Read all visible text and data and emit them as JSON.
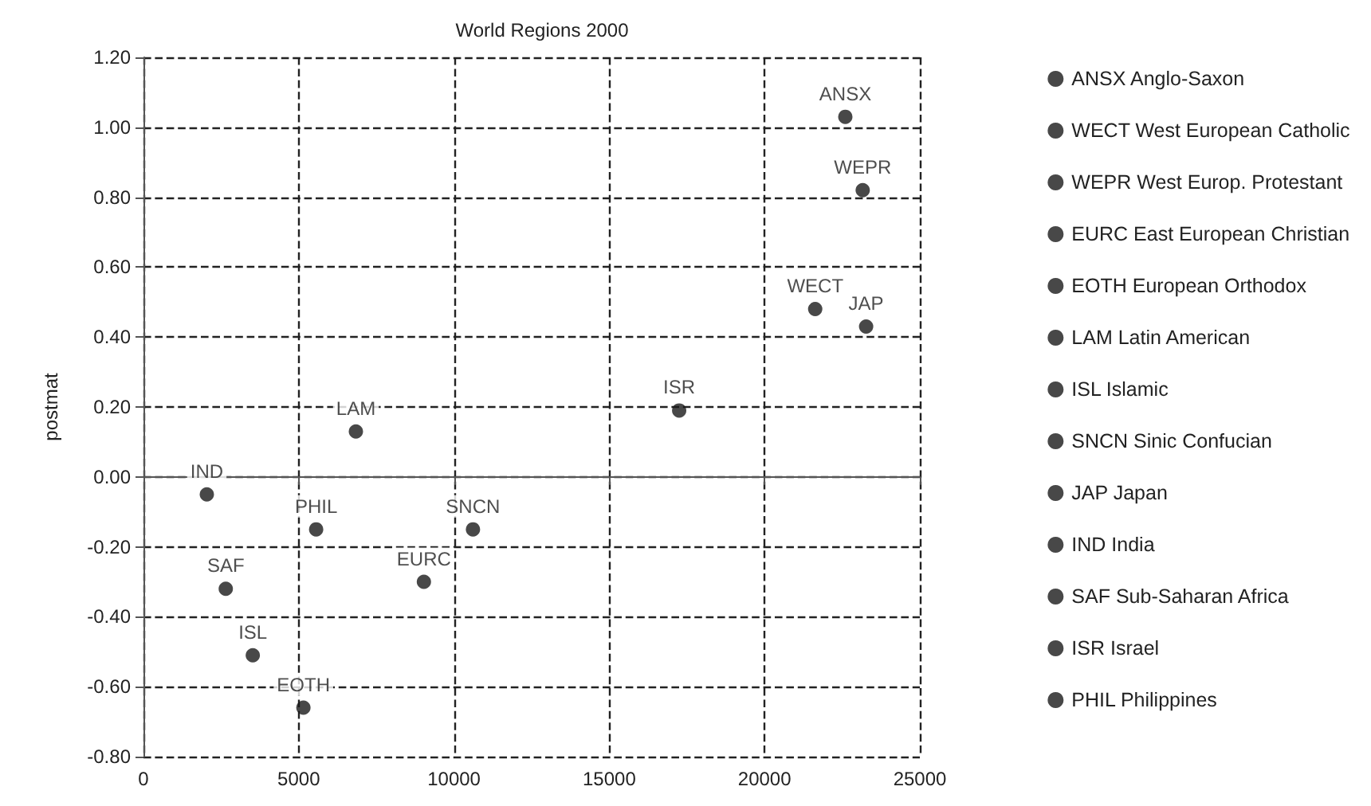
{
  "chart_data": {
    "type": "scatter",
    "title": "World Regions 2000",
    "ylabel": "postmat",
    "xlim": [
      0,
      25000
    ],
    "xticks": [
      0,
      5000,
      10000,
      15000,
      20000,
      25000
    ],
    "ylim": [
      -0.8,
      1.2
    ],
    "yticks": [
      {
        "value": -0.8,
        "label": "-0.80"
      },
      {
        "value": -0.6,
        "label": "-0.60"
      },
      {
        "value": -0.4,
        "label": "-0.40"
      },
      {
        "value": -0.2,
        "label": "-0.20"
      },
      {
        "value": 0,
        "label": "0.00"
      },
      {
        "value": 0.2,
        "label": "0.20"
      },
      {
        "value": 0.4,
        "label": "0.40"
      },
      {
        "value": 0.6,
        "label": "0.60"
      },
      {
        "value": 0.8,
        "label": "0.80"
      },
      {
        "value": 1,
        "label": "1.00"
      },
      {
        "value": 1.2,
        "label": "1.20"
      }
    ],
    "grid": true,
    "legend": "right",
    "marker": "circle",
    "series": [
      {
        "name": "ANSX Anglo-Saxon",
        "color": "#1a1a1a",
        "x": [
          22600
        ],
        "values": [
          1.03
        ],
        "value_labels": [
          "ANSX"
        ]
      },
      {
        "name": "WECT West European Catholic",
        "color": "#1a1a1a",
        "x": [
          21630
        ],
        "values": [
          0.48
        ],
        "value_labels": [
          "WECT"
        ]
      },
      {
        "name": "WEPR West Europ. Protestant",
        "color": "#1a1a1a",
        "x": [
          23160
        ],
        "values": [
          0.82
        ],
        "value_labels": [
          "WEPR"
        ]
      },
      {
        "name": "EURC East European Christian",
        "color": "#1a1a1a",
        "x": [
          9030
        ],
        "values": [
          -0.3
        ],
        "value_labels": [
          "EURC"
        ]
      },
      {
        "name": "EOTH European Orthodox",
        "color": "#1a1a1a",
        "x": [
          5150
        ],
        "values": [
          -0.66
        ],
        "value_labels": [
          "EOTH"
        ]
      },
      {
        "name": "LAM Latin American",
        "color": "#1a1a1a",
        "x": [
          6840
        ],
        "values": [
          0.13
        ],
        "value_labels": [
          "LAM"
        ]
      },
      {
        "name": "ISL Islamic",
        "color": "#1a1a1a",
        "x": [
          3520
        ],
        "values": [
          -0.51
        ],
        "value_labels": [
          "ISL"
        ]
      },
      {
        "name": "SNCN Sinic Confucian",
        "color": "#1a1a1a",
        "x": [
          10610
        ],
        "values": [
          -0.15
        ],
        "value_labels": [
          "SNCN"
        ]
      },
      {
        "name": "JAP Japan",
        "color": "#1a1a1a",
        "x": [
          23270
        ],
        "values": [
          0.43
        ],
        "value_labels": [
          "JAP"
        ]
      },
      {
        "name": "IND India",
        "color": "#1a1a1a",
        "x": [
          2040
        ],
        "values": [
          -0.05
        ],
        "value_labels": [
          "IND"
        ]
      },
      {
        "name": "SAF Sub-Saharan Africa",
        "color": "#1a1a1a",
        "x": [
          2650
        ],
        "values": [
          -0.32
        ],
        "value_labels": [
          "SAF"
        ]
      },
      {
        "name": "ISR Israel",
        "color": "#1a1a1a",
        "x": [
          17250
        ],
        "values": [
          0.19
        ],
        "value_labels": [
          "ISR"
        ]
      },
      {
        "name": "PHIL Philippines",
        "color": "#1a1a1a",
        "x": [
          5560
        ],
        "values": [
          -0.15
        ],
        "value_labels": [
          "PHIL"
        ]
      }
    ]
  }
}
